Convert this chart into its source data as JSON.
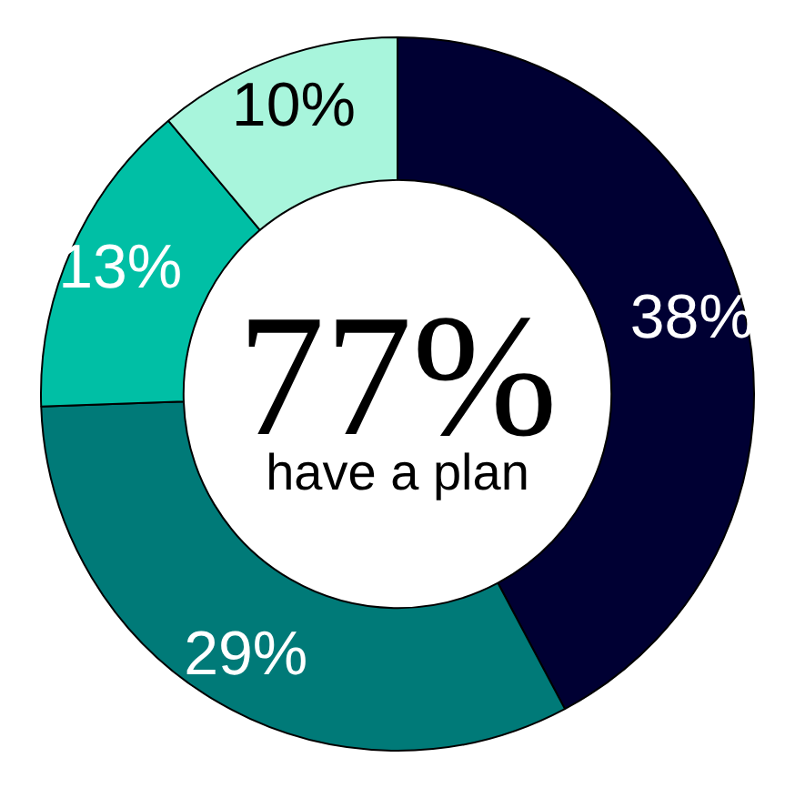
{
  "chart_data": {
    "type": "donut",
    "categories": [
      null,
      null,
      null,
      null
    ],
    "values": [
      38,
      29,
      13,
      10
    ],
    "value_labels": [
      "38%",
      "29%",
      "13%",
      "10%"
    ],
    "colors": [
      "#000033",
      "#007a78",
      "#00bfa5",
      "#a8f5dc"
    ],
    "annotations": [
      "77%",
      "have a plan"
    ],
    "legend": false
  }
}
